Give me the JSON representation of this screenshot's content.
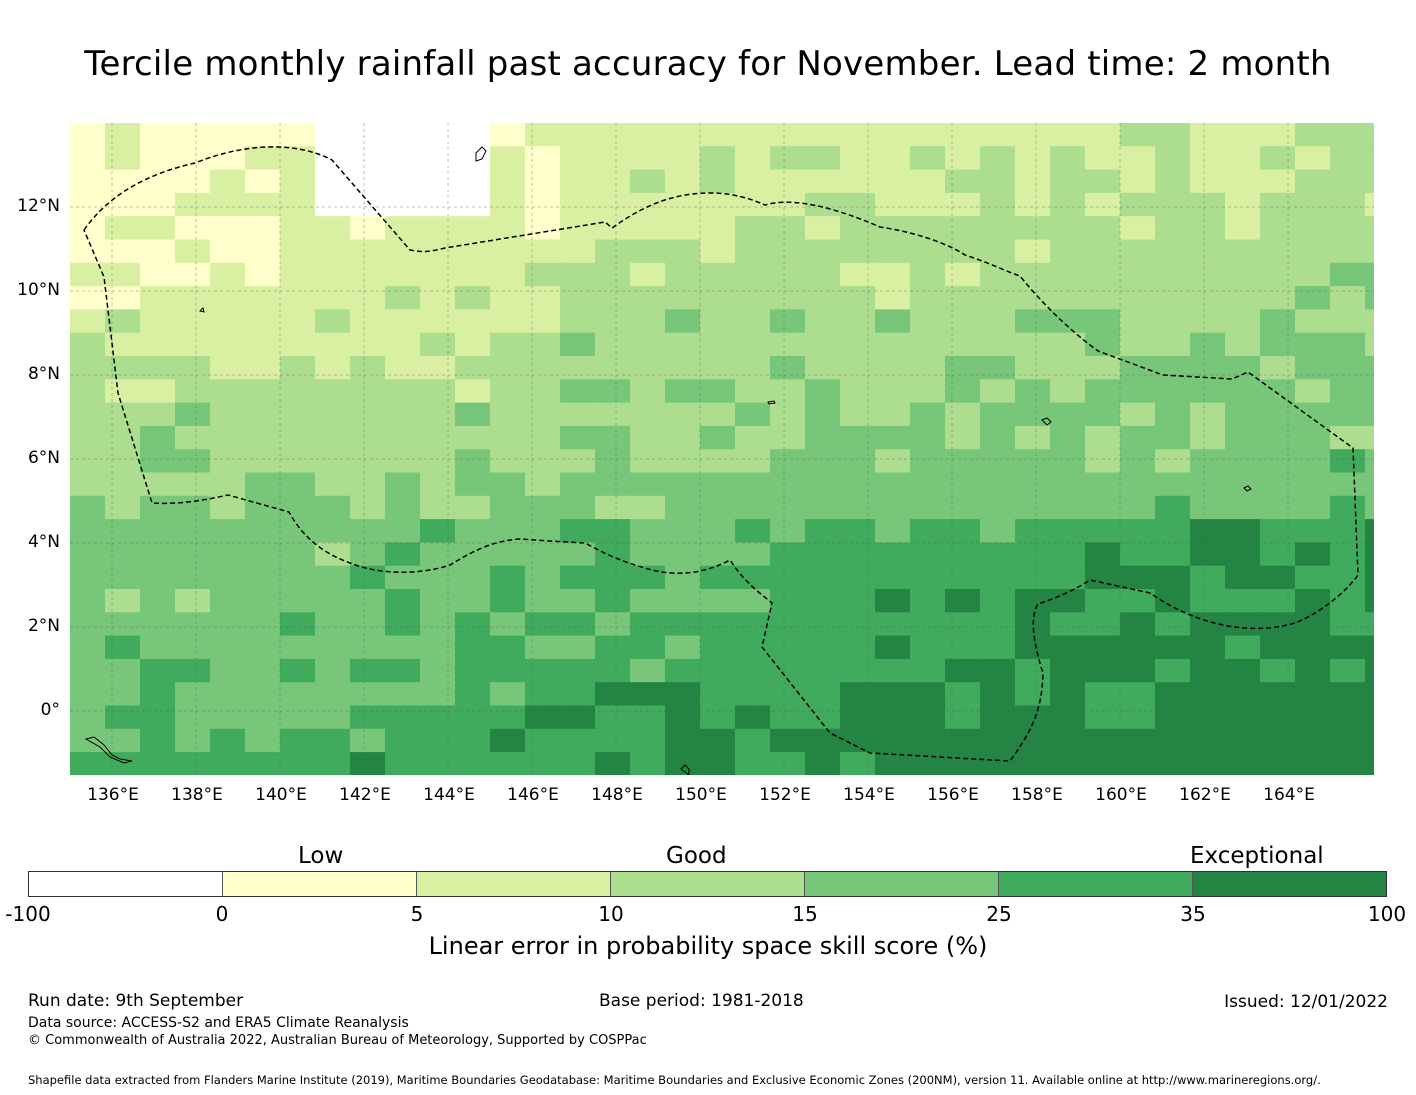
{
  "title": "Tercile monthly rainfall past accuracy for November. Lead time: 2 month",
  "map": {
    "lat_labels": [
      "12°N",
      "10°N",
      "8°N",
      "6°N",
      "4°N",
      "2°N",
      "0°"
    ],
    "lon_labels": [
      "136°E",
      "138°E",
      "140°E",
      "142°E",
      "144°E",
      "146°E",
      "148°E",
      "150°E",
      "152°E",
      "154°E",
      "156°E",
      "158°E",
      "160°E",
      "162°E",
      "164°E"
    ]
  },
  "legend": {
    "categories": [
      "Low",
      "Good",
      "Exceptional"
    ],
    "ticks": [
      "-100",
      "0",
      "5",
      "10",
      "15",
      "25",
      "35",
      "100"
    ],
    "colors": [
      "#ffffff",
      "#ffffcc",
      "#d9f0a3",
      "#addd8e",
      "#78c679",
      "#41ab5d",
      "#238443"
    ],
    "label": "Linear error in probability space skill score (%)"
  },
  "footer": {
    "run_date": "Run date: 9th September",
    "base_period": "Base period: 1981-2018",
    "issued": "Issued: 12/01/2022",
    "data_source": "Data source: ACCESS-S2 and ERA5 Climate Reanalysis",
    "copyright": "© Commonwealth of Australia 2022, Australian Bureau of Meteorology, Supported by COSPPac",
    "shapefile": "Shapefile data extracted from Flanders Marine Institute (2019), Maritime Boundaries Geodatabase: Maritime Boundaries and Exclusive Economic Zones (200NM), version 11. Available online at http://www.marineregions.org/."
  }
}
